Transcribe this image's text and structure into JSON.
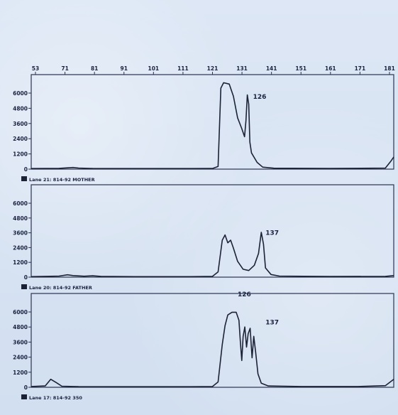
{
  "header_text": {
    "line1": "",
    "line2": ""
  },
  "colors": {
    "trace": "#1c2236",
    "frame": "#2a3350",
    "background": "#d9e4f3"
  },
  "chart_data": [
    {
      "type": "line",
      "caption": "Lane 21: 814-92 MOTHER",
      "x_ticks": [
        "53",
        "71",
        "81",
        "91",
        "101",
        "111",
        "121",
        "131",
        "141",
        "151",
        "161",
        "171",
        "181"
      ],
      "y_ticks": [
        "6000",
        "4800",
        "3600",
        "2400",
        "1200",
        "0"
      ],
      "ylim": [
        0,
        7000
      ],
      "xlim": [
        53,
        183
      ],
      "peak_labels": [
        {
          "text": "126",
          "x": 131.5,
          "y": 5200
        }
      ],
      "series": [
        {
          "points": [
            [
              53,
              40
            ],
            [
              58,
              50
            ],
            [
              63,
              60
            ],
            [
              68,
              120
            ],
            [
              70,
              80
            ],
            [
              75,
              50
            ],
            [
              90,
              40
            ],
            [
              110,
              40
            ],
            [
              118,
              50
            ],
            [
              120,
              200
            ],
            [
              121,
              6000
            ],
            [
              122,
              6400
            ],
            [
              124,
              6300
            ],
            [
              125.5,
              5400
            ],
            [
              127,
              3800
            ],
            [
              128.5,
              3000
            ],
            [
              129.5,
              2400
            ],
            [
              130,
              3600
            ],
            [
              130.5,
              5500
            ],
            [
              131,
              4800
            ],
            [
              131.4,
              2000
            ],
            [
              132,
              1200
            ],
            [
              134,
              500
            ],
            [
              136,
              150
            ],
            [
              140,
              70
            ],
            [
              160,
              50
            ],
            [
              180,
              80
            ],
            [
              182,
              600
            ],
            [
              183,
              900
            ]
          ]
        }
      ]
    },
    {
      "type": "line",
      "caption": "Lane 20: 814-92 FATHER",
      "x_ticks": [],
      "y_ticks": [
        "6000",
        "4800",
        "3600",
        "2400",
        "1200",
        "0"
      ],
      "ylim": [
        0,
        7000
      ],
      "xlim": [
        53,
        183
      ],
      "peak_labels": [
        {
          "text": "137",
          "x": 136,
          "y": 3200
        }
      ],
      "series": [
        {
          "points": [
            [
              53,
              40
            ],
            [
              58,
              60
            ],
            [
              63,
              80
            ],
            [
              66,
              180
            ],
            [
              68,
              120
            ],
            [
              72,
              70
            ],
            [
              75,
              100
            ],
            [
              78,
              60
            ],
            [
              90,
              40
            ],
            [
              110,
              40
            ],
            [
              118,
              60
            ],
            [
              120,
              400
            ],
            [
              121.5,
              2800
            ],
            [
              122.5,
              3200
            ],
            [
              123.5,
              2600
            ],
            [
              124.5,
              2800
            ],
            [
              125.5,
              2200
            ],
            [
              127,
              1200
            ],
            [
              129,
              600
            ],
            [
              131,
              500
            ],
            [
              133,
              900
            ],
            [
              134.5,
              1800
            ],
            [
              135.5,
              3400
            ],
            [
              136.3,
              2500
            ],
            [
              137,
              700
            ],
            [
              139,
              200
            ],
            [
              142,
              80
            ],
            [
              160,
              50
            ],
            [
              180,
              60
            ],
            [
              183,
              120
            ]
          ]
        }
      ]
    },
    {
      "type": "line",
      "caption": "Lane 17: 814-92 350",
      "x_ticks": [],
      "y_ticks": [
        "6000",
        "4800",
        "3600",
        "2400",
        "1200",
        "0"
      ],
      "ylim": [
        0,
        7000
      ],
      "xlim": [
        53,
        183
      ],
      "peak_labels": [
        {
          "text": "126",
          "x": 126,
          "y": 6800
        },
        {
          "text": "137",
          "x": 136,
          "y": 4700
        }
      ],
      "series": [
        {
          "points": [
            [
              53,
              60
            ],
            [
              58,
              100
            ],
            [
              60,
              600
            ],
            [
              62,
              350
            ],
            [
              64,
              80
            ],
            [
              70,
              50
            ],
            [
              90,
              40
            ],
            [
              110,
              40
            ],
            [
              118,
              60
            ],
            [
              120,
              400
            ],
            [
              121.5,
              3200
            ],
            [
              122.5,
              4600
            ],
            [
              123.5,
              5400
            ],
            [
              125,
              5600
            ],
            [
              126.5,
              5600
            ],
            [
              127.5,
              5000
            ],
            [
              128,
              3400
            ],
            [
              128.5,
              2000
            ],
            [
              129,
              3800
            ],
            [
              129.6,
              4500
            ],
            [
              130.2,
              3000
            ],
            [
              130.8,
              4000
            ],
            [
              131.5,
              4400
            ],
            [
              132.2,
              2200
            ],
            [
              132.8,
              3800
            ],
            [
              133.5,
              2600
            ],
            [
              134.3,
              1000
            ],
            [
              135.5,
              300
            ],
            [
              138,
              100
            ],
            [
              150,
              60
            ],
            [
              170,
              60
            ],
            [
              180,
              120
            ],
            [
              183,
              600
            ]
          ]
        }
      ]
    }
  ]
}
